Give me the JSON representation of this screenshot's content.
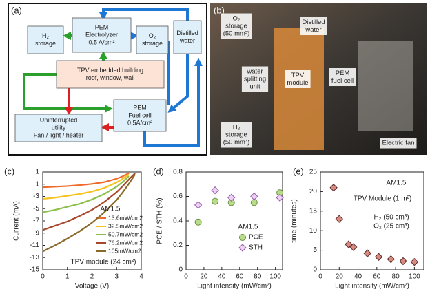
{
  "panel_labels": [
    "(a)",
    "(b)",
    "(c)",
    "(d)",
    "(e)"
  ],
  "diagram": {
    "nodes": [
      {
        "lines": [
          "H₂",
          "storage"
        ]
      },
      {
        "lines": [
          "PEM",
          "Electrolyzer",
          "0.5 A/cm²"
        ]
      },
      {
        "lines": [
          "O₂",
          "storage"
        ]
      },
      {
        "lines": [
          "Distilled",
          "water"
        ]
      },
      {
        "lines": [
          "TPV embedded building",
          "roof, window, wall"
        ]
      },
      {
        "lines": [
          "PEM",
          "Fuel cell",
          "0.5A/cm²"
        ]
      },
      {
        "lines": [
          "Uninterrupted",
          "utility",
          "Fan / light / heater"
        ]
      }
    ]
  },
  "photo": {
    "labels": [
      {
        "lines": [
          "O₂",
          "storage",
          "(50 mm³)"
        ]
      },
      {
        "lines": [
          "Distilled",
          "water"
        ]
      },
      {
        "lines": [
          "water",
          "splitting",
          "unit"
        ]
      },
      {
        "lines": [
          "TPV",
          "module"
        ]
      },
      {
        "lines": [
          "PEM",
          "fuel cell"
        ]
      },
      {
        "lines": [
          "H₂",
          "storage",
          "(50 mm³)"
        ]
      },
      {
        "lines": [
          "Electric fan"
        ]
      }
    ]
  },
  "chart_data": [
    {
      "type": "line",
      "xlabel": "Voltage (V)",
      "ylabel": "Current (mA)",
      "x": [
        0,
        0.5,
        1,
        1.5,
        2,
        2.5,
        3,
        3.25,
        3.5,
        3.75
      ],
      "series": [
        {
          "name": "13.6mW/cm2",
          "color": "#ef6a2a",
          "values": [
            -1.5,
            -1.4,
            -1.3,
            -1.15,
            -0.95,
            -0.65,
            -0.1,
            0.3,
            0.8,
            null
          ]
        },
        {
          "name": "32.5mW/cm2",
          "color": "#f6c21c",
          "values": [
            -3.4,
            -3.2,
            -2.9,
            -2.6,
            -2.2,
            -1.6,
            -0.7,
            -0.1,
            0.6,
            null
          ]
        },
        {
          "name": "50.7mW/cm2",
          "color": "#8cc04a",
          "values": [
            -5.6,
            -5.2,
            -4.7,
            -4.2,
            -3.5,
            -2.6,
            -1.4,
            -0.6,
            0.3,
            null
          ]
        },
        {
          "name": "76.2mW/cm2",
          "color": "#a8472a",
          "values": [
            -8.5,
            -7.8,
            -7.1,
            -6.2,
            -5.2,
            -3.9,
            -2.3,
            -1.3,
            -0.2,
            0.8
          ]
        },
        {
          "name": "105mW/cm2",
          "color": "#8a6a2a",
          "values": [
            -12,
            -11,
            -9.9,
            -8.7,
            -7.3,
            -5.6,
            -3.6,
            -2.3,
            -0.9,
            0.6
          ]
        }
      ],
      "xlim": [
        0,
        4
      ],
      "xticks": [
        0,
        1,
        2,
        3,
        4
      ],
      "ylim": [
        -15,
        1
      ],
      "yticks": [
        1,
        -1,
        -3,
        -5,
        -7,
        -9,
        -11,
        -13,
        -15
      ],
      "annotations": [
        "AM1.5",
        "TPV module (24 cm²)"
      ]
    },
    {
      "type": "scatter",
      "xlabel": "Light intensity (mW/cm²)",
      "ylabel": "PCE / STH (%)",
      "x": [
        13.6,
        32.5,
        50.7,
        76.2,
        105
      ],
      "series": [
        {
          "name": "PCE",
          "marker": "circle",
          "color": "#b8dc8c",
          "edgecolor": "#6a8f3a",
          "values": [
            0.39,
            0.56,
            0.55,
            0.55,
            0.63
          ]
        },
        {
          "name": "STH",
          "marker": "diamond",
          "color": "#ead2f0",
          "edgecolor": "#9a5aae",
          "values": [
            0.53,
            0.65,
            0.59,
            0.6,
            0.59
          ]
        }
      ],
      "xlim": [
        0,
        108
      ],
      "xticks": [
        0,
        20,
        40,
        60,
        80,
        100
      ],
      "ylim": [
        0,
        0.8
      ],
      "yticks": [
        0,
        0.2,
        0.4,
        0.6,
        0.8
      ],
      "annotations": [
        "AM1.5"
      ]
    },
    {
      "type": "scatter",
      "xlabel": "Light intensity (mW/cm²)",
      "ylabel": "time (minutes)",
      "x": [
        14,
        20,
        30,
        35,
        50,
        62,
        75,
        88,
        100
      ],
      "series": [
        {
          "marker": "diamond",
          "color": "#d98a80",
          "edgecolor": "#5a2a2a",
          "values": [
            21,
            13,
            6.5,
            5.8,
            4.2,
            3.3,
            2.7,
            2.2,
            2
          ]
        }
      ],
      "xlim": [
        0,
        110
      ],
      "xticks": [
        0,
        20,
        40,
        60,
        80,
        100
      ],
      "ylim": [
        0,
        25
      ],
      "yticks": [
        0,
        5,
        10,
        15,
        20,
        25
      ],
      "annotations": [
        "AM1.5",
        "TPV Module (1 m²)",
        "H₂ (50 cm³)",
        "O₂ (25 cm³)"
      ]
    }
  ]
}
